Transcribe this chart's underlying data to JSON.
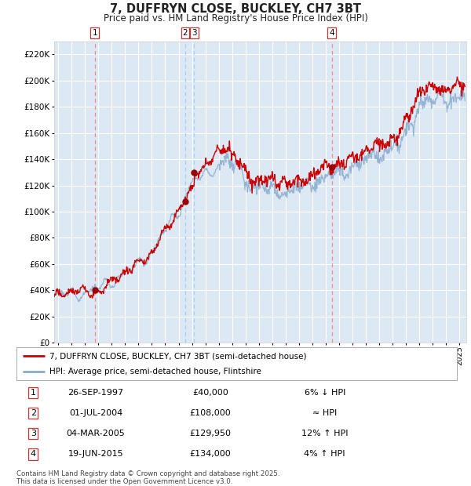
{
  "title": "7, DUFFRYN CLOSE, BUCKLEY, CH7 3BT",
  "subtitle": "Price paid vs. HM Land Registry's House Price Index (HPI)",
  "ylim": [
    0,
    230000
  ],
  "yticks": [
    0,
    20000,
    40000,
    60000,
    80000,
    100000,
    120000,
    140000,
    160000,
    180000,
    200000,
    220000
  ],
  "xlim_start": 1994.7,
  "xlim_end": 2025.5,
  "background_color": "#dce9f5",
  "grid_color": "#ffffff",
  "transactions": [
    {
      "date_x": 1997.73,
      "price": 40000,
      "label": "1",
      "vline_color": "#ff8888",
      "vline_style": "--"
    },
    {
      "date_x": 2004.5,
      "price": 108000,
      "label": "2",
      "vline_color": "#aaccee",
      "vline_style": "--"
    },
    {
      "date_x": 2005.17,
      "price": 129950,
      "label": "3",
      "vline_color": "#aaccee",
      "vline_style": "--"
    },
    {
      "date_x": 2015.46,
      "price": 134000,
      "label": "4",
      "vline_color": "#ff8888",
      "vline_style": "--"
    }
  ],
  "table_rows": [
    {
      "num": "1",
      "date": "26-SEP-1997",
      "price": "£40,000",
      "rel": "6% ↓ HPI"
    },
    {
      "num": "2",
      "date": "01-JUL-2004",
      "price": "£108,000",
      "rel": "≈ HPI"
    },
    {
      "num": "3",
      "date": "04-MAR-2005",
      "price": "£129,950",
      "rel": "12% ↑ HPI"
    },
    {
      "num": "4",
      "date": "19-JUN-2015",
      "price": "£134,000",
      "rel": "4% ↑ HPI"
    }
  ],
  "footer": "Contains HM Land Registry data © Crown copyright and database right 2025.\nThis data is licensed under the Open Government Licence v3.0.",
  "legend_red": "7, DUFFRYN CLOSE, BUCKLEY, CH7 3BT (semi-detached house)",
  "legend_blue": "HPI: Average price, semi-detached house, Flintshire",
  "line_color_red": "#cc0000",
  "line_color_blue": "#88aacc",
  "marker_color": "#990000"
}
